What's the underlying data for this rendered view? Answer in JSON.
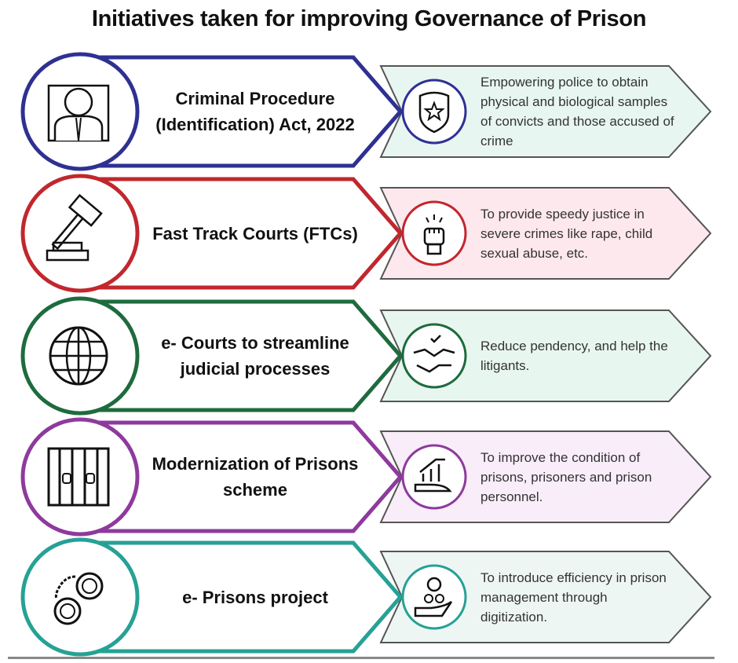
{
  "title": "Initiatives taken for improving Governance of Prison",
  "rows": [
    {
      "name": "Criminal Procedure (Identification) Act, 2022",
      "description": "Empowering police to obtain physical and biological samples of convicts and those accused of crime",
      "color": "#2e3192",
      "fill": "#e8f6f2",
      "icon": "prisoner-mugshot-icon",
      "small_icon": "police-badge-icon"
    },
    {
      "name": "Fast Track Courts (FTCs)",
      "description": "To provide speedy justice in severe crimes like rape, child sexual abuse, etc.",
      "color": "#c1272d",
      "fill": "#fde8ee",
      "icon": "gavel-icon",
      "small_icon": "raised-fist-icon"
    },
    {
      "name": "e- Courts to streamline judicial processes",
      "description": "Reduce pendency, and help the litigants.",
      "color": "#1e6b3e",
      "fill": "#e8f6f0",
      "icon": "globe-icon",
      "small_icon": "handshake-icon"
    },
    {
      "name": "Modernization of Prisons scheme",
      "description": "To improve the condition of prisons, prisoners and prison personnel.",
      "color": "#8e3a9d",
      "fill": "#f8edf8",
      "icon": "prison-bars-icon",
      "small_icon": "growth-hand-icon"
    },
    {
      "name": "e- Prisons project",
      "description": "To introduce efficiency in prison management through digitization.",
      "color": "#26a195",
      "fill": "#eef6f4",
      "icon": "handcuffs-icon",
      "small_icon": "management-hand-icon"
    }
  ]
}
